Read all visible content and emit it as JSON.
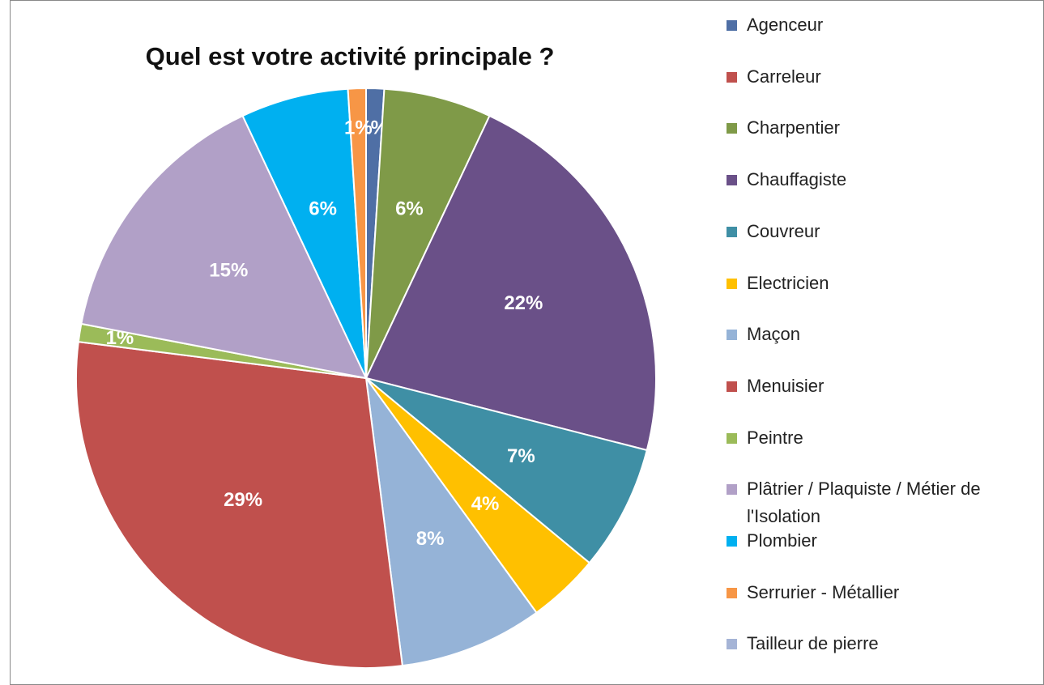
{
  "chart_data": {
    "type": "pie",
    "title": "Quel est votre activité principale ?",
    "categories": [
      "Agenceur",
      "Carreleur",
      "Charpentier",
      "Chauffagiste",
      "Couvreur",
      "Electricien",
      "Maçon",
      "Menuisier",
      "Peintre",
      "Plâtrier / Plaquiste / Métier de l'Isolation",
      "Plombier",
      "Serrurier - Métallier",
      "Tailleur de pierre"
    ],
    "values": [
      1,
      0,
      6,
      22,
      7,
      4,
      8,
      29,
      1,
      15,
      6,
      1,
      0
    ],
    "value_labels": [
      "1%",
      null,
      "6%",
      "22%",
      "7%",
      "4%",
      "8%",
      "29%",
      "1%",
      "15%",
      "6%",
      "1%",
      null
    ],
    "colors": [
      "#4F6FA5",
      "#C0504D",
      "#7F9A48",
      "#6A5088",
      "#3F8FA5",
      "#FFC000",
      "#95B3D7",
      "#C0504D",
      "#9BBB59",
      "#B1A0C7",
      "#00B0F0",
      "#F79646",
      "#A5B4D6"
    ]
  }
}
